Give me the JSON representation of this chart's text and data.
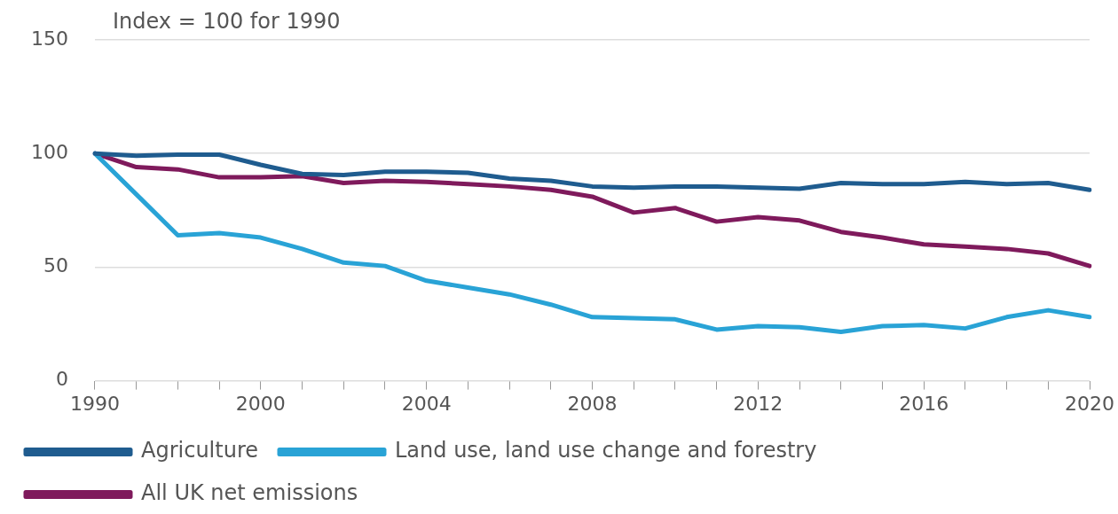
{
  "chart_data": {
    "type": "line",
    "ylabel": "Index = 100 for 1990",
    "categories": [
      "1990",
      null,
      null,
      null,
      "2000",
      null,
      null,
      null,
      "2004",
      null,
      null,
      null,
      "2008",
      null,
      null,
      null,
      "2012",
      null,
      null,
      null,
      "2016",
      null,
      null,
      null,
      "2020"
    ],
    "series": [
      {
        "name": "Agriculture",
        "color": "#1f5c8f",
        "values": [
          100,
          99,
          99.5,
          99.5,
          95,
          91,
          90.5,
          92,
          92,
          91.5,
          89,
          88,
          85.5,
          85,
          85.5,
          85.5,
          85,
          84.5,
          87,
          86.5,
          86.5,
          87.5,
          86.5,
          87,
          84
        ]
      },
      {
        "name": "Land use, land use change and forestry",
        "color": "#29a3d6",
        "values": [
          100,
          82,
          64,
          65,
          63,
          58,
          52,
          50.5,
          44,
          41,
          38,
          33.5,
          28,
          27.5,
          27,
          22.5,
          24,
          23.5,
          21.5,
          24,
          24.5,
          23,
          28,
          31,
          28
        ]
      },
      {
        "name": "All UK net emissions",
        "color": "#7f1a5c",
        "values": [
          100,
          94,
          93,
          89.5,
          89.5,
          90,
          87,
          88,
          87.5,
          86.5,
          85.5,
          84,
          81,
          74,
          76,
          70,
          72,
          70.5,
          65.5,
          63,
          60,
          59,
          58,
          56,
          50.5
        ]
      }
    ],
    "ylim": [
      0,
      150
    ],
    "yticks": [
      0,
      50,
      100,
      150
    ],
    "grid": "y",
    "legend": "bottom",
    "marker": "none",
    "line_style": "solid"
  }
}
